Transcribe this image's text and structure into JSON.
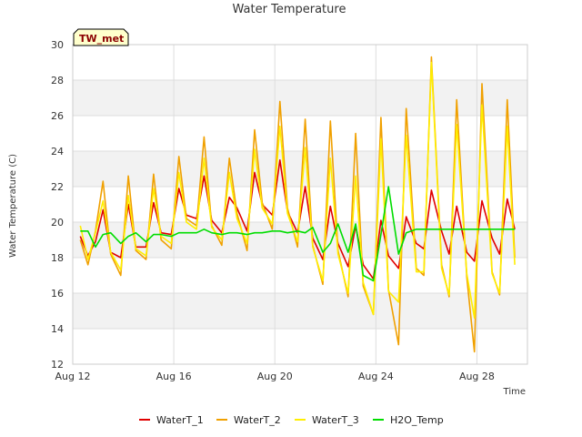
{
  "chart_data": {
    "type": "line",
    "title": "Water Temperature",
    "xlabel": "Time",
    "ylabel": "Water Temperature (C)",
    "site_tag": "TW_met",
    "xlim": [
      12,
      30
    ],
    "ylim": [
      12,
      30
    ],
    "x_ticks": [
      12,
      16,
      20,
      24,
      28
    ],
    "x_tick_labels": [
      "Aug 12",
      "Aug 16",
      "Aug 20",
      "Aug 24",
      "Aug 28"
    ],
    "y_ticks": [
      12,
      14,
      16,
      18,
      20,
      22,
      24,
      26,
      28,
      30
    ],
    "grid": "horizontal bands",
    "legend_position": "bottom",
    "series": [
      {
        "name": "WaterT_1",
        "color": "#e00000",
        "x": [
          12.3,
          12.6,
          12.9,
          13.2,
          13.5,
          13.9,
          14.2,
          14.5,
          14.9,
          15.2,
          15.5,
          15.9,
          16.2,
          16.5,
          16.9,
          17.2,
          17.5,
          17.9,
          18.2,
          18.5,
          18.9,
          19.2,
          19.5,
          19.9,
          20.2,
          20.5,
          20.9,
          21.2,
          21.5,
          21.9,
          22.2,
          22.5,
          22.9,
          23.2,
          23.5,
          23.9,
          24.2,
          24.5,
          24.9,
          25.2,
          25.6,
          25.9,
          26.2,
          26.6,
          26.9,
          27.2,
          27.6,
          27.9,
          28.2,
          28.6,
          28.9,
          29.2,
          29.5
        ],
        "y": [
          19.2,
          18.1,
          18.9,
          20.7,
          18.3,
          18.0,
          21.0,
          18.6,
          18.6,
          21.1,
          19.4,
          19.3,
          21.9,
          20.4,
          20.2,
          22.6,
          20.1,
          19.4,
          21.4,
          20.8,
          19.5,
          22.8,
          21.0,
          20.4,
          23.5,
          20.6,
          19.4,
          22.0,
          19.1,
          17.9,
          20.9,
          18.8,
          17.5,
          19.8,
          17.6,
          16.8,
          20.1,
          18.1,
          17.4,
          20.3,
          18.8,
          18.5,
          21.8,
          19.5,
          18.2,
          20.9,
          18.3,
          17.8,
          21.2,
          19.1,
          18.2,
          21.3,
          19.6
        ]
      },
      {
        "name": "WaterT_2",
        "color": "#f0a000",
        "x": [
          12.3,
          12.6,
          12.9,
          13.2,
          13.5,
          13.9,
          14.2,
          14.5,
          14.9,
          15.2,
          15.5,
          15.9,
          16.2,
          16.5,
          16.9,
          17.2,
          17.5,
          17.9,
          18.2,
          18.5,
          18.9,
          19.2,
          19.5,
          19.9,
          20.2,
          20.5,
          20.9,
          21.2,
          21.5,
          21.9,
          22.2,
          22.5,
          22.9,
          23.2,
          23.5,
          23.9,
          24.2,
          24.5,
          24.9,
          25.2,
          25.6,
          25.9,
          26.2,
          26.6,
          26.9,
          27.2,
          27.6,
          27.9,
          28.2,
          28.6,
          28.9,
          29.2,
          29.5
        ],
        "y": [
          19.0,
          17.6,
          19.5,
          22.3,
          18.2,
          17.0,
          22.6,
          18.4,
          17.9,
          22.7,
          19.0,
          18.5,
          23.7,
          20.2,
          19.8,
          24.8,
          19.8,
          18.7,
          23.6,
          20.5,
          18.4,
          25.2,
          21.1,
          19.6,
          26.8,
          20.8,
          18.6,
          25.8,
          18.7,
          16.5,
          25.7,
          18.4,
          15.8,
          25.0,
          16.4,
          14.8,
          25.9,
          16.2,
          13.1,
          26.4,
          17.4,
          17.0,
          29.3,
          17.6,
          15.8,
          26.9,
          16.9,
          12.7,
          27.8,
          17.2,
          15.9,
          26.9,
          18.0
        ]
      },
      {
        "name": "WaterT_3",
        "color": "#ffee00",
        "x": [
          12.3,
          12.6,
          12.9,
          13.2,
          13.5,
          13.9,
          14.2,
          14.5,
          14.9,
          15.2,
          15.5,
          15.9,
          16.2,
          16.5,
          16.9,
          17.2,
          17.5,
          17.9,
          18.2,
          18.5,
          18.9,
          19.2,
          19.5,
          19.9,
          20.2,
          20.5,
          20.9,
          21.2,
          21.5,
          21.9,
          22.2,
          22.5,
          22.9,
          23.2,
          23.5,
          23.9,
          24.2,
          24.5,
          24.9,
          25.2,
          25.6,
          25.9,
          26.2,
          26.6,
          26.9,
          27.2,
          27.6,
          27.9,
          28.2,
          28.6,
          28.9,
          29.2,
          29.5
        ],
        "y": [
          19.8,
          17.9,
          19.4,
          21.2,
          18.3,
          17.3,
          21.5,
          18.5,
          18.1,
          21.9,
          19.2,
          18.8,
          22.8,
          20.0,
          19.6,
          23.6,
          19.7,
          19.0,
          22.8,
          20.2,
          18.8,
          24.1,
          20.8,
          19.9,
          25.4,
          20.5,
          18.9,
          24.2,
          18.6,
          16.7,
          23.6,
          18.2,
          16.0,
          22.6,
          16.6,
          14.8,
          24.7,
          16.1,
          15.5,
          24.9,
          17.2,
          17.2,
          29.0,
          17.4,
          15.9,
          25.5,
          17.1,
          14.6,
          26.6,
          17.1,
          16.0,
          25.4,
          17.6
        ]
      },
      {
        "name": "H2O_Temp",
        "color": "#00dd00",
        "x": [
          12.3,
          12.6,
          12.9,
          13.2,
          13.5,
          13.9,
          14.2,
          14.5,
          14.9,
          15.2,
          15.5,
          15.9,
          16.2,
          16.5,
          16.9,
          17.2,
          17.5,
          17.9,
          18.2,
          18.5,
          18.9,
          19.2,
          19.5,
          19.9,
          20.2,
          20.5,
          20.9,
          21.2,
          21.5,
          21.9,
          22.2,
          22.5,
          22.9,
          23.2,
          23.5,
          23.9,
          24.2,
          24.5,
          24.9,
          25.2,
          25.6,
          25.9,
          26.2,
          26.6,
          26.9,
          27.2,
          27.6,
          27.9,
          28.2,
          28.6,
          28.9,
          29.2,
          29.5
        ],
        "y": [
          19.5,
          19.5,
          18.6,
          19.3,
          19.4,
          18.8,
          19.2,
          19.4,
          18.9,
          19.3,
          19.3,
          19.2,
          19.4,
          19.4,
          19.4,
          19.6,
          19.4,
          19.3,
          19.4,
          19.4,
          19.3,
          19.4,
          19.4,
          19.5,
          19.5,
          19.4,
          19.5,
          19.4,
          19.7,
          18.3,
          18.8,
          19.9,
          18.3,
          19.9,
          17.0,
          16.7,
          19.3,
          22.0,
          18.2,
          19.4,
          19.6,
          19.6,
          19.6,
          19.6,
          19.6,
          19.6,
          19.6,
          19.6,
          19.6,
          19.6,
          19.6,
          19.6,
          19.6
        ]
      }
    ]
  }
}
